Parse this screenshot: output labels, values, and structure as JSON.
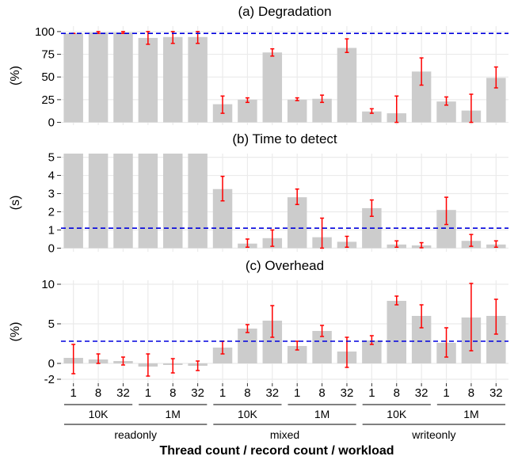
{
  "chart_data": [
    {
      "type": "bar",
      "title": "(a) Degradation",
      "ylabel": "(%)",
      "ylim": [
        -3,
        106
      ],
      "yticks": [
        0,
        25,
        50,
        75,
        100
      ],
      "ytick_labels": [
        "0",
        "25",
        "50",
        "75",
        "100"
      ],
      "reference_line": 98,
      "values": [
        98,
        99,
        99,
        93,
        94,
        94,
        20,
        25,
        77,
        25,
        26,
        82,
        12,
        10,
        56,
        23,
        13,
        49
      ],
      "err_low": [
        98,
        98,
        98,
        86,
        87,
        87,
        10,
        22,
        73,
        24,
        22,
        77,
        10,
        0,
        41,
        19,
        0,
        38
      ],
      "err_high": [
        98,
        100,
        100,
        100,
        100,
        100,
        29,
        27,
        81,
        27,
        30,
        92,
        15,
        29,
        71,
        28,
        31,
        61
      ]
    },
    {
      "type": "bar",
      "title": "(b) Time to detect",
      "ylabel": "(s)",
      "ylim": [
        -0.2,
        5.2
      ],
      "yticks": [
        0,
        1,
        2,
        3,
        4,
        5
      ],
      "ytick_labels": [
        "0",
        "1",
        "2",
        "3",
        "4",
        "5"
      ],
      "reference_line": 1.1,
      "values": [
        5.2,
        5.2,
        5.2,
        5.2,
        5.2,
        5.2,
        3.25,
        0.25,
        0.55,
        2.8,
        0.6,
        0.35,
        2.2,
        0.2,
        0.15,
        2.1,
        0.4,
        0.2
      ],
      "err_low": [
        null,
        null,
        null,
        null,
        null,
        null,
        2.6,
        0.05,
        0.1,
        2.4,
        0.0,
        0.05,
        1.75,
        0.05,
        0.02,
        1.3,
        0.1,
        0.05
      ],
      "err_high": [
        null,
        null,
        null,
        null,
        null,
        null,
        3.95,
        0.5,
        1.0,
        3.25,
        1.65,
        0.65,
        2.65,
        0.4,
        0.3,
        2.8,
        0.75,
        0.4
      ]
    },
    {
      "type": "bar",
      "title": "(c) Overhead",
      "ylabel": "(%)",
      "ylim": [
        -2.5,
        10.5
      ],
      "yticks": [
        -2,
        0,
        5,
        10
      ],
      "ytick_labels": [
        "-2",
        "0",
        "5",
        "10"
      ],
      "reference_line": 2.8,
      "values": [
        0.7,
        0.5,
        0.3,
        -0.4,
        -0.2,
        -0.3,
        2.0,
        4.4,
        5.4,
        2.2,
        4.1,
        1.5,
        2.9,
        7.9,
        6.0,
        2.6,
        5.8,
        6.0
      ],
      "err_low": [
        -1.3,
        0.0,
        -0.2,
        -1.6,
        -1.2,
        -0.9,
        1.2,
        3.9,
        3.3,
        1.7,
        3.4,
        -0.5,
        2.4,
        7.4,
        4.5,
        0.8,
        1.6,
        3.7
      ],
      "err_high": [
        2.4,
        1.2,
        0.8,
        1.2,
        0.6,
        0.3,
        2.8,
        4.9,
        7.3,
        2.8,
        4.8,
        3.3,
        3.5,
        8.5,
        7.4,
        4.5,
        10.1,
        8.1
      ]
    }
  ],
  "x_axis": {
    "thread_labels": [
      "1",
      "8",
      "32",
      "1",
      "8",
      "32",
      "1",
      "8",
      "32",
      "1",
      "8",
      "32",
      "1",
      "8",
      "32",
      "1",
      "8",
      "32"
    ],
    "record_labels": [
      "10K",
      "1M",
      "10K",
      "1M",
      "10K",
      "1M"
    ],
    "workload_labels": [
      "readonly",
      "mixed",
      "writeonly"
    ],
    "title": "Thread count / record count / workload"
  },
  "colors": {
    "bar": "#cccccc",
    "error": "#ff0000",
    "reference": "#0000dd",
    "grid": "#ebebeb",
    "axis": "#333333"
  }
}
